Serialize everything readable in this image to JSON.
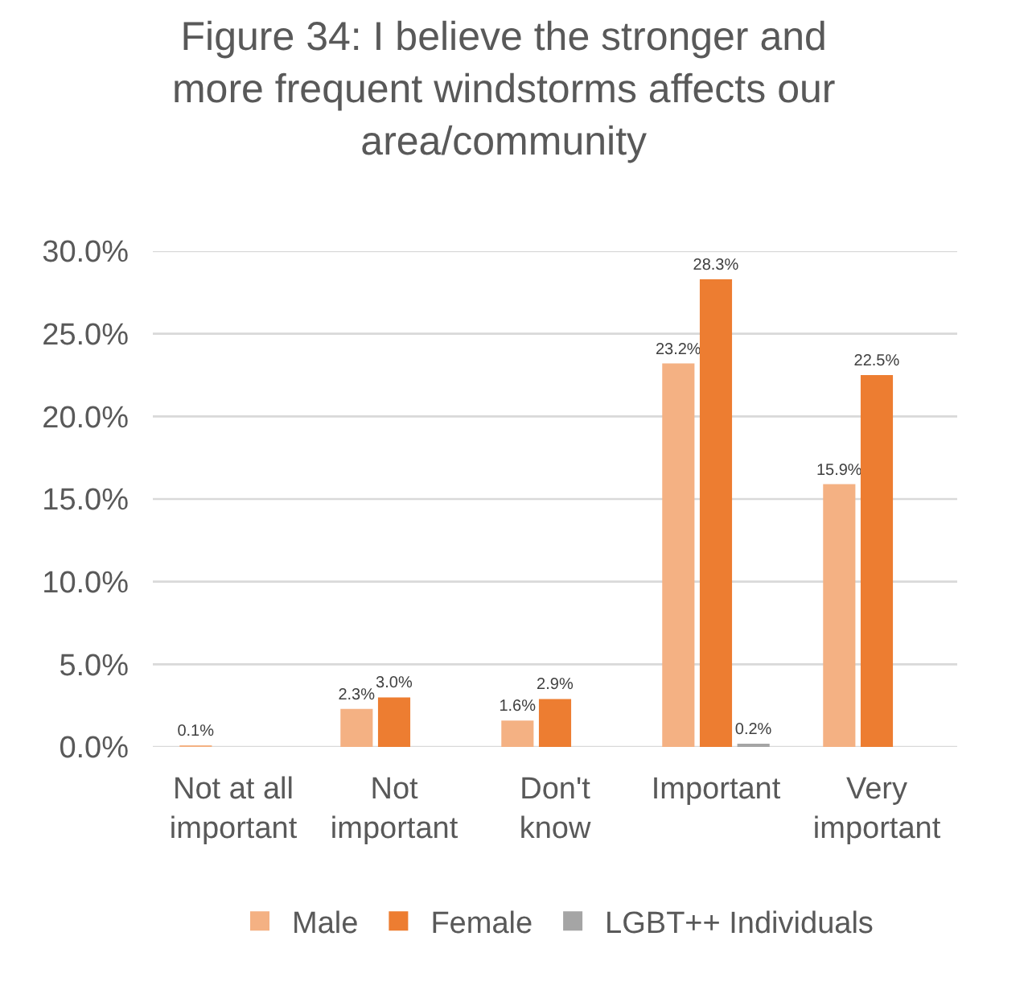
{
  "chart_data": {
    "type": "bar",
    "title": "Figure 34: I believe the stronger and more frequent windstorms affects our area/community",
    "categories": [
      "Not at all important",
      "Not important",
      "Don't know",
      "Important",
      "Very important"
    ],
    "series": [
      {
        "name": "Male",
        "color": "#f4b183",
        "values": [
          0.1,
          2.3,
          1.6,
          23.2,
          15.9
        ],
        "value_labels": [
          "0.1%",
          "2.3%",
          "1.6%",
          "23.2%",
          "15.9%"
        ]
      },
      {
        "name": "Female",
        "color": "#ed7d31",
        "values": [
          null,
          3.0,
          2.9,
          28.3,
          22.5
        ],
        "value_labels": [
          null,
          "3.0%",
          "2.9%",
          "28.3%",
          "22.5%"
        ]
      },
      {
        "name": "LGBT++ Individuals",
        "color": "#a5a5a5",
        "values": [
          null,
          null,
          null,
          0.2,
          null
        ],
        "value_labels": [
          null,
          null,
          null,
          "0.2%",
          null
        ]
      }
    ],
    "ylim": [
      0,
      30
    ],
    "yticks": [
      {
        "value": 0,
        "label": "0.0%"
      },
      {
        "value": 5,
        "label": "5.0%"
      },
      {
        "value": 10,
        "label": "10.0%"
      },
      {
        "value": 15,
        "label": "15.0%"
      },
      {
        "value": 20,
        "label": "20.0%"
      },
      {
        "value": 25,
        "label": "25.0%"
      },
      {
        "value": 30,
        "label": "30.0%"
      }
    ],
    "grid": "y",
    "legend": "bottom"
  }
}
